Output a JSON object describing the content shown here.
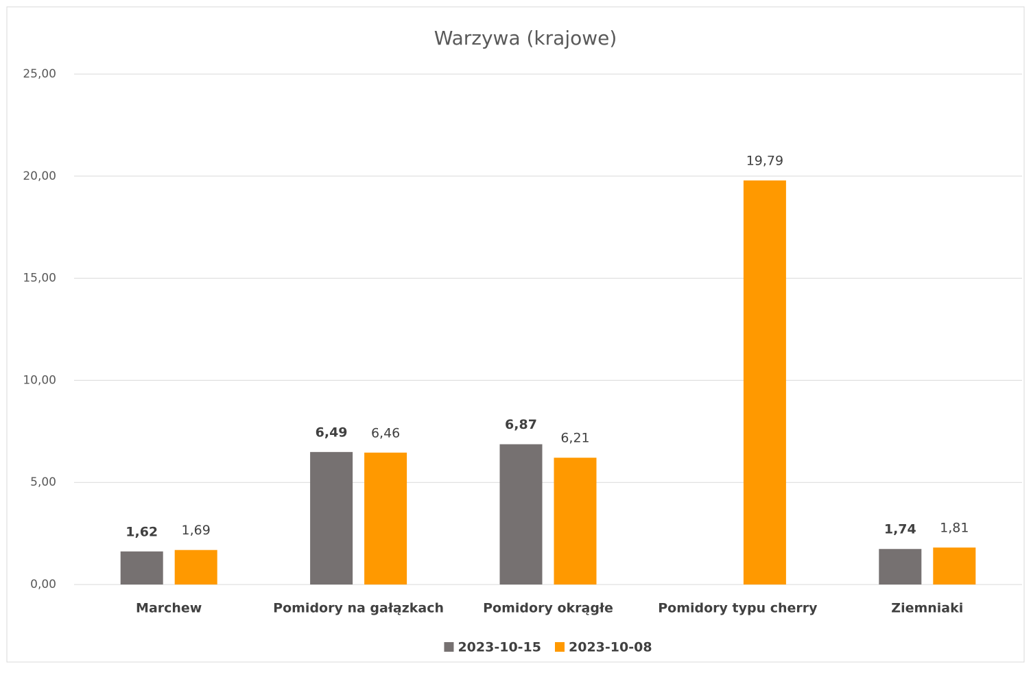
{
  "chart_data": {
    "type": "bar",
    "title": "Warzywa (krajowe)",
    "categories": [
      "Marchew",
      "Pomidory na gałązkach",
      "Pomidory okrągłe",
      "Pomidory typu cherry",
      "Ziemniaki"
    ],
    "series": [
      {
        "name": "2023-10-15",
        "color": "#767171",
        "values": [
          1.62,
          6.49,
          6.87,
          null,
          1.74
        ],
        "value_labels": [
          "1,62",
          "6,49",
          "6,87",
          null,
          "1,74"
        ]
      },
      {
        "name": "2023-10-08",
        "color": "#ff9900",
        "values": [
          1.69,
          6.46,
          6.21,
          19.79,
          1.81
        ],
        "value_labels": [
          "1,69",
          "6,46",
          "6,21",
          "19,79",
          "1,81"
        ]
      }
    ],
    "ylim": [
      0,
      25
    ],
    "yticks": [
      {
        "value": 0,
        "label": "0,00"
      },
      {
        "value": 5,
        "label": "5,00"
      },
      {
        "value": 10,
        "label": "10,00"
      },
      {
        "value": 15,
        "label": "15,00"
      },
      {
        "value": 20,
        "label": "20,00"
      },
      {
        "value": 25,
        "label": "25,00"
      }
    ],
    "grid": true,
    "legend": "bottom"
  }
}
